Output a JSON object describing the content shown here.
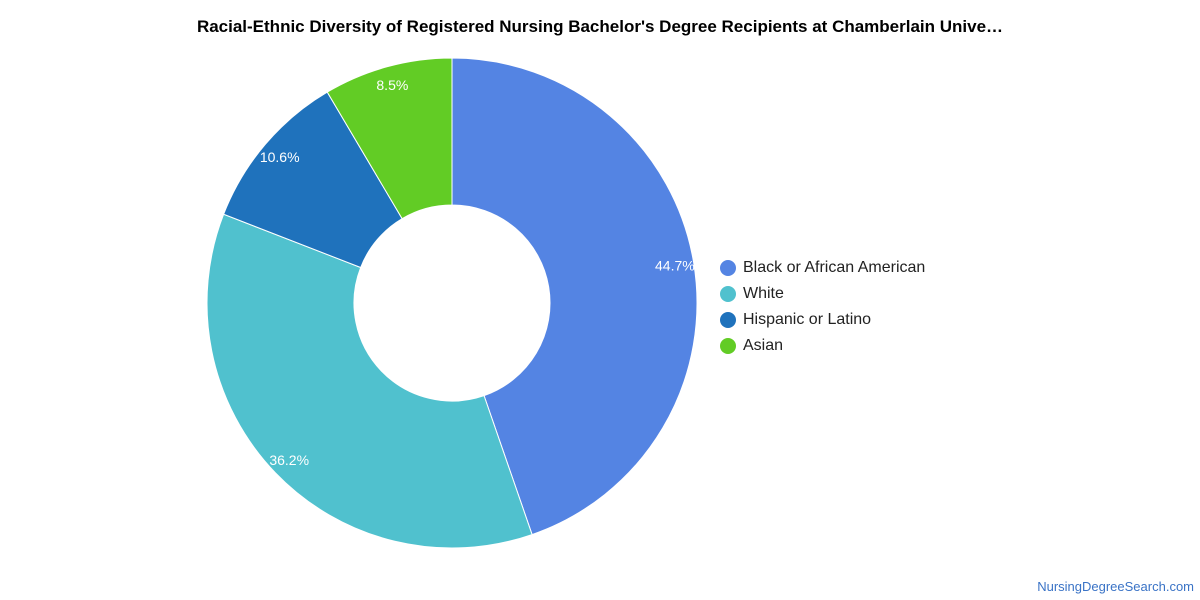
{
  "chart_data": {
    "type": "pie",
    "variant": "donut",
    "title": "Racial-Ethnic Diversity of Registered Nursing Bachelor's Degree Recipients at Chamberlain Unive…",
    "categories": [
      "Black or African American",
      "White",
      "Hispanic or Latino",
      "Asian"
    ],
    "values": [
      44.7,
      36.2,
      10.6,
      8.5
    ],
    "labels": [
      "44.7%",
      "36.2%",
      "10.6%",
      "8.5%"
    ],
    "colors": [
      "#5484e3",
      "#50c1ce",
      "#1f72bc",
      "#62cc25"
    ],
    "legend_placement": "right"
  },
  "watermark": "NursingDegreeSearch.com"
}
